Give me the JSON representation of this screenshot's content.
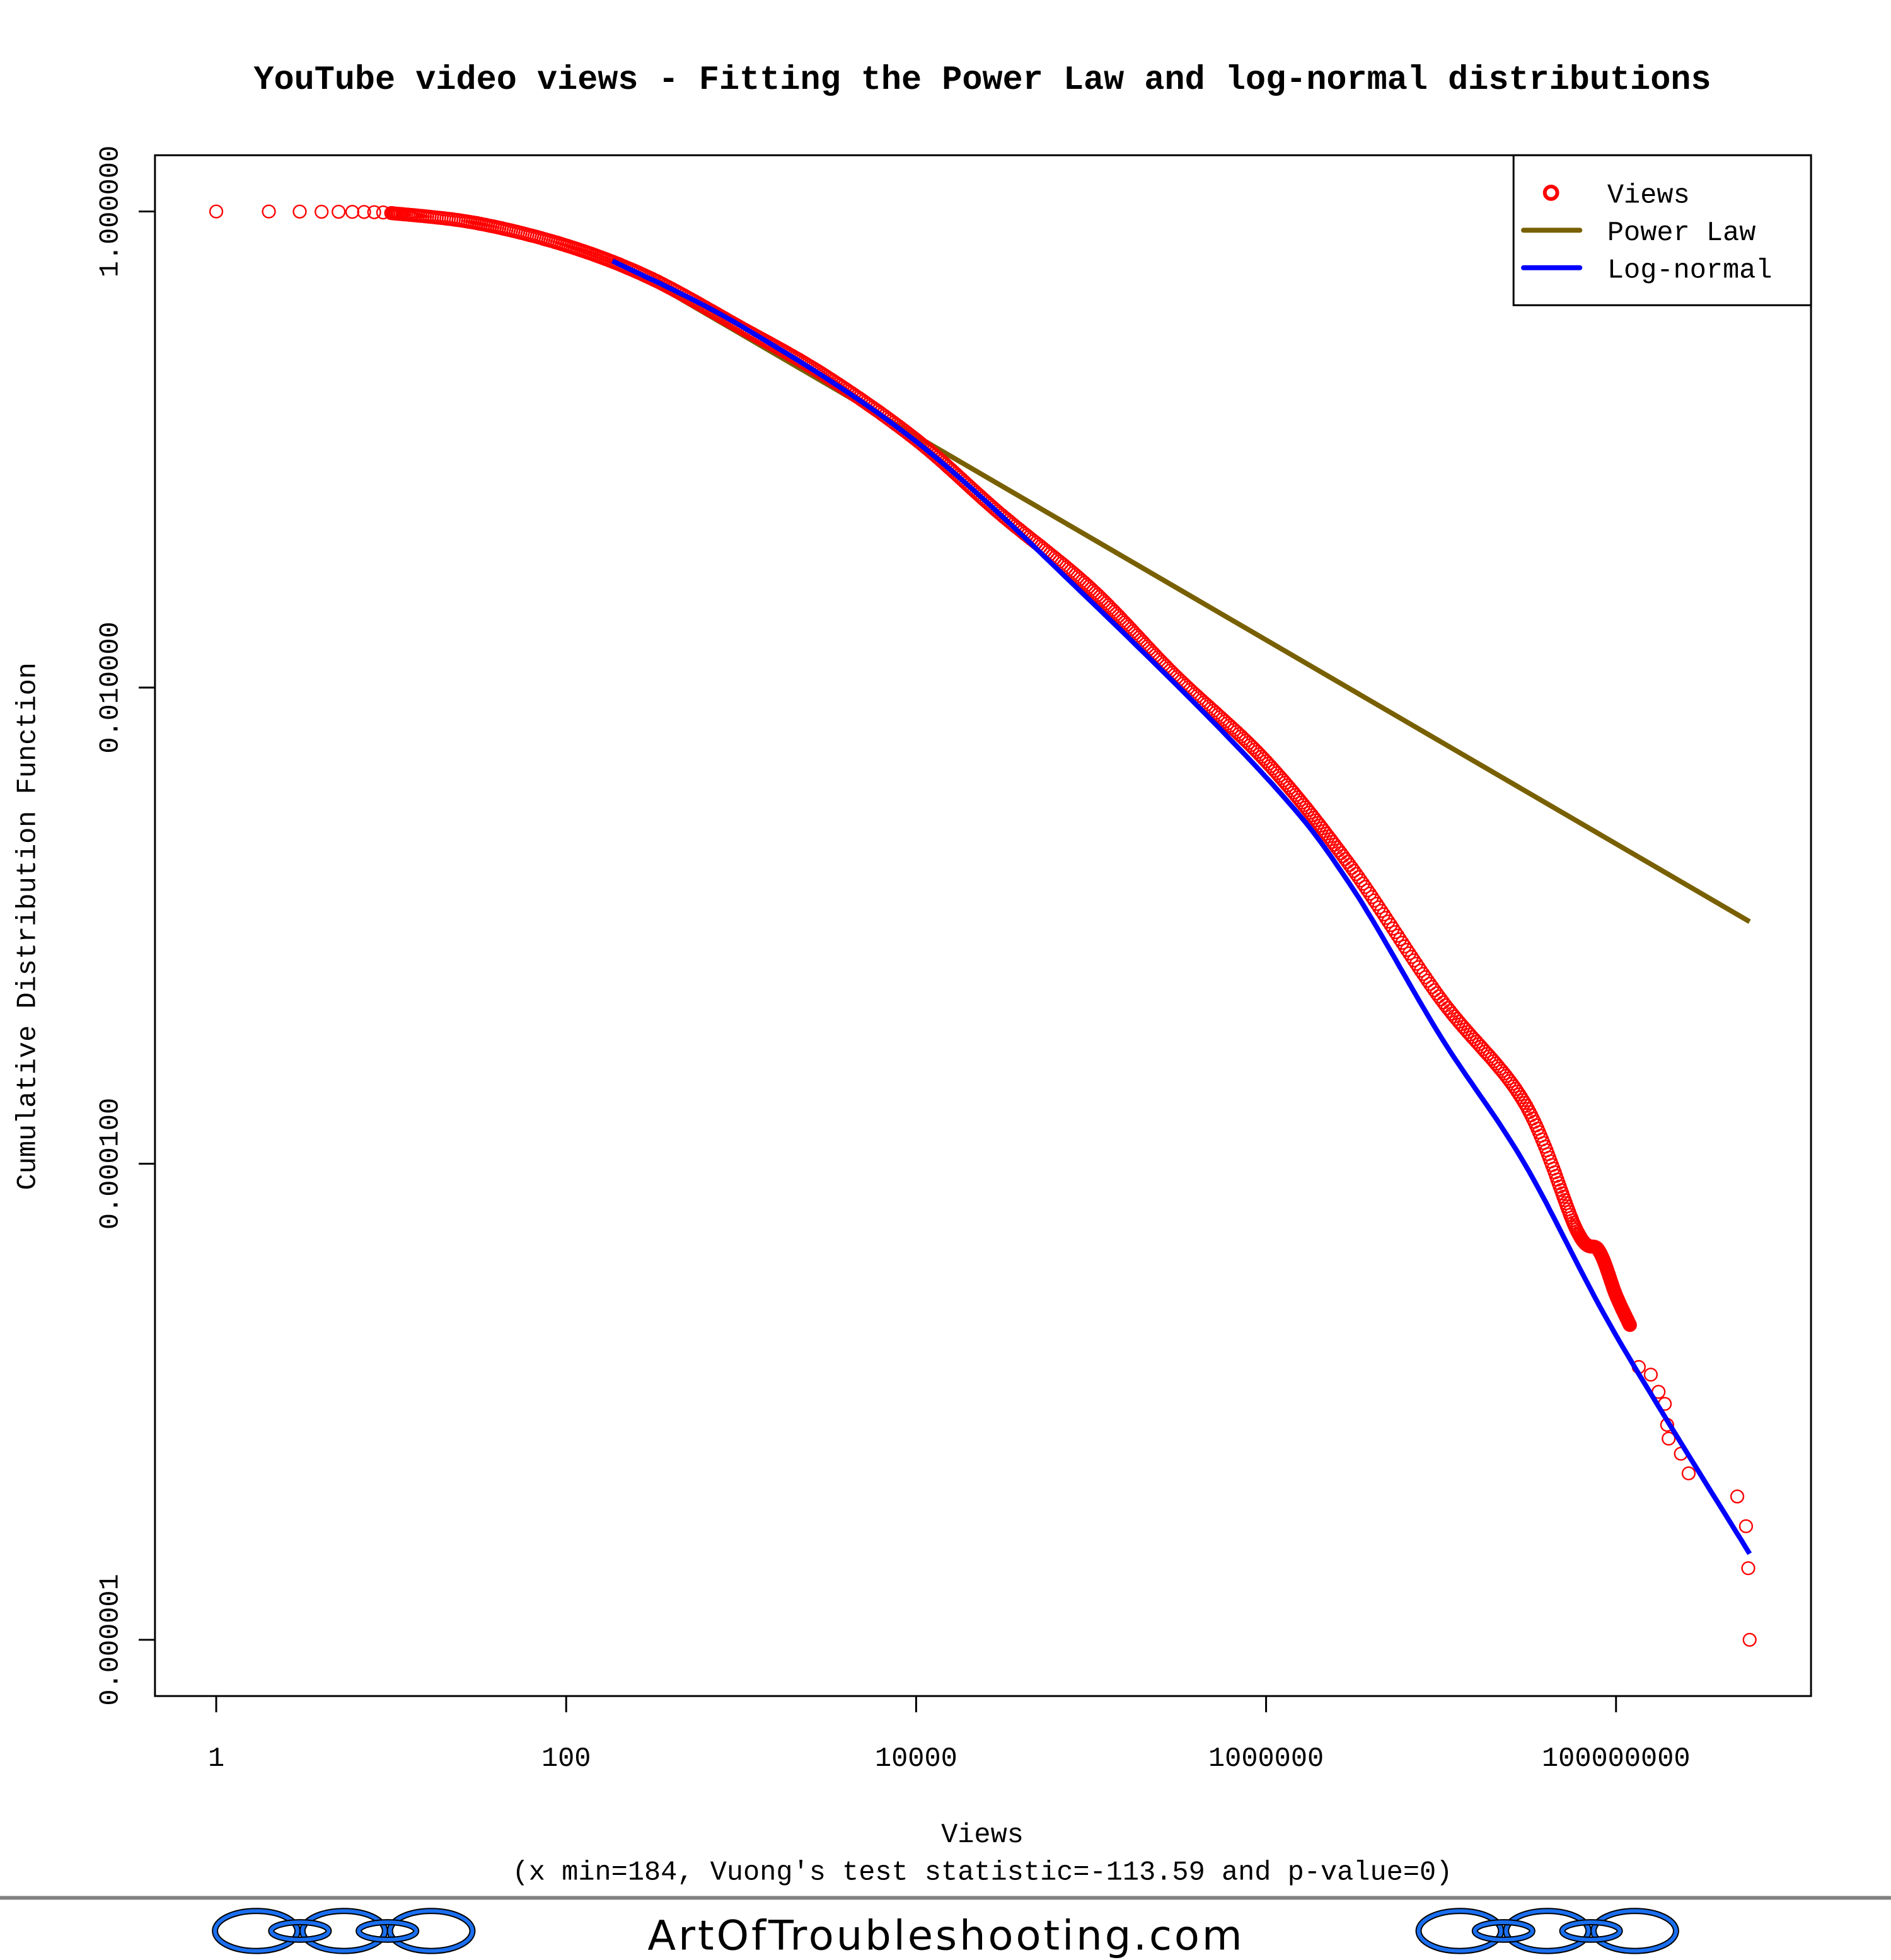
{
  "chart_data": {
    "type": "scatter",
    "title": "YouTube video views - Fitting the Power Law and log-normal distributions",
    "xlabel": "Views",
    "subtitle": "(x min=184, Vuong's test statistic=-113.59 and p-value=0)",
    "ylabel": "Cumulative Distribution Function",
    "xscale": "log",
    "yscale": "log",
    "xlim": [
      0.5,
      1200000000
    ],
    "ylim": [
      5e-07,
      1.8
    ],
    "x_ticks": [
      1,
      100,
      10000,
      1000000,
      100000000
    ],
    "x_tick_labels": [
      "1",
      "100",
      "10000",
      "1000000",
      "100000000"
    ],
    "y_ticks": [
      1,
      0.01,
      0.0001,
      1e-06
    ],
    "y_tick_labels": [
      "1.000000",
      "0.010000",
      "0.000100",
      "0.000001"
    ],
    "legend": {
      "position": "top-right",
      "entries": [
        {
          "label": "Views",
          "kind": "point",
          "color": "#ff0000"
        },
        {
          "label": "Power Law",
          "kind": "line",
          "color": "#786000"
        },
        {
          "label": "Log-normal",
          "kind": "line",
          "color": "#0000ff"
        }
      ]
    },
    "series": [
      {
        "name": "Views",
        "kind": "points",
        "color": "#ff0000",
        "points_discrete_head": [
          [
            1,
            1.0
          ],
          [
            2,
            0.9995
          ],
          [
            3,
            0.999
          ],
          [
            4,
            0.998
          ],
          [
            5,
            0.997
          ],
          [
            6,
            0.996
          ],
          [
            7,
            0.995
          ],
          [
            8,
            0.993
          ],
          [
            9,
            0.99
          ]
        ],
        "points_dense": [
          [
            10,
            0.985
          ],
          [
            30,
            0.897
          ],
          [
            100,
            0.72
          ],
          [
            300,
            0.527
          ],
          [
            1000,
            0.325
          ],
          [
            3000,
            0.205
          ],
          [
            10000,
            0.11
          ],
          [
            30000,
            0.054
          ],
          [
            100000,
            0.026
          ],
          [
            300000,
            0.0113
          ],
          [
            1000000,
            0.0049
          ],
          [
            3000000,
            0.0018
          ],
          [
            10000000,
            0.00049
          ],
          [
            30000000,
            0.00018
          ],
          [
            60000000,
            5.2e-05
          ],
          [
            80000000,
            4.3e-05
          ],
          [
            100000000,
            2.8e-05
          ],
          [
            120000000,
            2.1e-05
          ]
        ],
        "points_discrete_tail": [
          [
            135000000,
            1.4e-05
          ],
          [
            158000000,
            1.3e-05
          ],
          [
            175000000,
            1.1e-05
          ],
          [
            190000000,
            9.8e-06
          ],
          [
            196000000,
            8e-06
          ],
          [
            200000000,
            7e-06
          ],
          [
            235000000,
            6.05e-06
          ],
          [
            260000000,
            5e-06
          ],
          [
            493000000,
            4e-06
          ],
          [
            553000000,
            3e-06
          ],
          [
            570000000,
            2e-06
          ],
          [
            580000000,
            1e-06
          ]
        ]
      },
      {
        "name": "Power Law",
        "kind": "line",
        "color": "#786000",
        "x_min": 184,
        "points": [
          [
            184,
            0.63
          ],
          [
            580000000,
            0.00104
          ]
        ]
      },
      {
        "name": "Log-normal",
        "kind": "line",
        "color": "#0000ff",
        "points": [
          [
            184,
            0.62
          ],
          [
            1000,
            0.33
          ],
          [
            10000,
            0.108
          ],
          [
            100000,
            0.023
          ],
          [
            1000000,
            0.0042
          ],
          [
            3000000,
            0.0015
          ],
          [
            10000000,
            0.00034
          ],
          [
            30000000,
            0.0001
          ],
          [
            100000000,
            1.9e-05
          ],
          [
            580000000,
            2.3e-06
          ]
        ]
      }
    ]
  },
  "footer": {
    "site": "ArtOfTroubleshooting.com"
  }
}
